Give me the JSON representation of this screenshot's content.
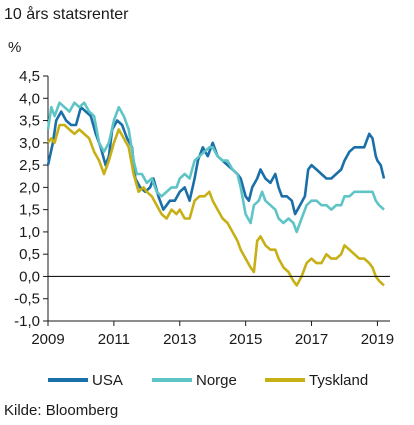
{
  "title": "10 års statsrenter",
  "source": "Kilde: Bloomberg",
  "chart_data": {
    "type": "line",
    "title": "10 års statsrenter",
    "ylabel": "%",
    "xlabel": "",
    "ylim": [
      -1.0,
      4.5
    ],
    "xlim": [
      2009.0,
      2019.2
    ],
    "yticks": [
      -1.0,
      -0.5,
      0.0,
      0.5,
      1.0,
      1.5,
      2.0,
      2.5,
      3.0,
      3.5,
      4.0,
      4.5
    ],
    "ytick_labels": [
      "-1,0",
      "-0,5",
      "0,0",
      "0,5",
      "1,0",
      "1,5",
      "2,0",
      "2,5",
      "3,0",
      "3,5",
      "4,0",
      "4,5"
    ],
    "xticks": [
      2009,
      2011,
      2013,
      2015,
      2017,
      2019
    ],
    "xtick_labels": [
      "2009",
      "2011",
      "2013",
      "2015",
      "2017",
      "2019"
    ],
    "zero_line": true,
    "grid": false,
    "legend_position": "bottom",
    "series": [
      {
        "name": "USA",
        "color": "#1a6fa8",
        "points": [
          [
            2009.0,
            2.5
          ],
          [
            2009.15,
            3.0
          ],
          [
            2009.25,
            3.5
          ],
          [
            2009.4,
            3.7
          ],
          [
            2009.55,
            3.5
          ],
          [
            2009.7,
            3.4
          ],
          [
            2009.85,
            3.4
          ],
          [
            2010.0,
            3.8
          ],
          [
            2010.15,
            3.7
          ],
          [
            2010.3,
            3.6
          ],
          [
            2010.45,
            3.2
          ],
          [
            2010.6,
            2.9
          ],
          [
            2010.75,
            2.5
          ],
          [
            2010.85,
            2.7
          ],
          [
            2010.95,
            3.3
          ],
          [
            2011.1,
            3.5
          ],
          [
            2011.25,
            3.4
          ],
          [
            2011.4,
            3.1
          ],
          [
            2011.55,
            2.9
          ],
          [
            2011.65,
            2.2
          ],
          [
            2011.8,
            2.0
          ],
          [
            2011.95,
            1.9
          ],
          [
            2012.1,
            2.0
          ],
          [
            2012.2,
            2.2
          ],
          [
            2012.35,
            1.8
          ],
          [
            2012.5,
            1.5
          ],
          [
            2012.6,
            1.6
          ],
          [
            2012.7,
            1.7
          ],
          [
            2012.85,
            1.7
          ],
          [
            2013.0,
            1.9
          ],
          [
            2013.15,
            2.0
          ],
          [
            2013.3,
            1.7
          ],
          [
            2013.45,
            2.2
          ],
          [
            2013.55,
            2.6
          ],
          [
            2013.7,
            2.9
          ],
          [
            2013.85,
            2.7
          ],
          [
            2014.0,
            3.0
          ],
          [
            2014.15,
            2.7
          ],
          [
            2014.3,
            2.6
          ],
          [
            2014.45,
            2.5
          ],
          [
            2014.6,
            2.4
          ],
          [
            2014.75,
            2.3
          ],
          [
            2014.85,
            2.2
          ],
          [
            2015.0,
            1.8
          ],
          [
            2015.1,
            1.7
          ],
          [
            2015.2,
            2.0
          ],
          [
            2015.35,
            2.2
          ],
          [
            2015.45,
            2.4
          ],
          [
            2015.6,
            2.2
          ],
          [
            2015.75,
            2.1
          ],
          [
            2015.9,
            2.3
          ],
          [
            2016.0,
            2.0
          ],
          [
            2016.1,
            1.8
          ],
          [
            2016.25,
            1.8
          ],
          [
            2016.4,
            1.7
          ],
          [
            2016.5,
            1.4
          ],
          [
            2016.65,
            1.6
          ],
          [
            2016.8,
            1.8
          ],
          [
            2016.9,
            2.4
          ],
          [
            2017.0,
            2.5
          ],
          [
            2017.15,
            2.4
          ],
          [
            2017.3,
            2.3
          ],
          [
            2017.45,
            2.2
          ],
          [
            2017.6,
            2.2
          ],
          [
            2017.75,
            2.3
          ],
          [
            2017.9,
            2.4
          ],
          [
            2018.0,
            2.6
          ],
          [
            2018.15,
            2.8
          ],
          [
            2018.3,
            2.9
          ],
          [
            2018.45,
            2.9
          ],
          [
            2018.6,
            2.9
          ],
          [
            2018.75,
            3.2
          ],
          [
            2018.85,
            3.1
          ],
          [
            2018.95,
            2.7
          ],
          [
            2019.0,
            2.6
          ],
          [
            2019.1,
            2.5
          ],
          [
            2019.2,
            2.2
          ]
        ]
      },
      {
        "name": "Norge",
        "color": "#5fc4c6",
        "points": [
          [
            2009.0,
            3.3
          ],
          [
            2009.1,
            3.8
          ],
          [
            2009.2,
            3.6
          ],
          [
            2009.35,
            3.9
          ],
          [
            2009.5,
            3.8
          ],
          [
            2009.65,
            3.7
          ],
          [
            2009.8,
            3.9
          ],
          [
            2009.95,
            3.8
          ],
          [
            2010.1,
            3.9
          ],
          [
            2010.25,
            3.7
          ],
          [
            2010.4,
            3.6
          ],
          [
            2010.55,
            3.0
          ],
          [
            2010.7,
            2.8
          ],
          [
            2010.85,
            3.0
          ],
          [
            2011.0,
            3.5
          ],
          [
            2011.15,
            3.8
          ],
          [
            2011.3,
            3.6
          ],
          [
            2011.45,
            3.3
          ],
          [
            2011.6,
            2.6
          ],
          [
            2011.7,
            2.3
          ],
          [
            2011.85,
            2.3
          ],
          [
            2012.0,
            2.1
          ],
          [
            2012.15,
            2.2
          ],
          [
            2012.3,
            1.9
          ],
          [
            2012.45,
            1.8
          ],
          [
            2012.6,
            1.9
          ],
          [
            2012.75,
            2.0
          ],
          [
            2012.9,
            2.0
          ],
          [
            2013.0,
            2.2
          ],
          [
            2013.15,
            2.3
          ],
          [
            2013.3,
            2.2
          ],
          [
            2013.45,
            2.6
          ],
          [
            2013.6,
            2.7
          ],
          [
            2013.75,
            2.8
          ],
          [
            2013.9,
            2.9
          ],
          [
            2014.0,
            2.9
          ],
          [
            2014.15,
            2.7
          ],
          [
            2014.3,
            2.6
          ],
          [
            2014.45,
            2.6
          ],
          [
            2014.6,
            2.4
          ],
          [
            2014.75,
            2.3
          ],
          [
            2014.85,
            2.0
          ],
          [
            2015.0,
            1.4
          ],
          [
            2015.15,
            1.2
          ],
          [
            2015.25,
            1.6
          ],
          [
            2015.4,
            1.7
          ],
          [
            2015.5,
            1.9
          ],
          [
            2015.6,
            1.7
          ],
          [
            2015.75,
            1.6
          ],
          [
            2015.9,
            1.5
          ],
          [
            2016.0,
            1.3
          ],
          [
            2016.15,
            1.2
          ],
          [
            2016.3,
            1.3
          ],
          [
            2016.45,
            1.2
          ],
          [
            2016.55,
            1.0
          ],
          [
            2016.7,
            1.3
          ],
          [
            2016.85,
            1.6
          ],
          [
            2017.0,
            1.7
          ],
          [
            2017.15,
            1.7
          ],
          [
            2017.3,
            1.6
          ],
          [
            2017.45,
            1.6
          ],
          [
            2017.6,
            1.5
          ],
          [
            2017.75,
            1.6
          ],
          [
            2017.9,
            1.6
          ],
          [
            2018.0,
            1.8
          ],
          [
            2018.15,
            1.8
          ],
          [
            2018.3,
            1.9
          ],
          [
            2018.45,
            1.9
          ],
          [
            2018.6,
            1.9
          ],
          [
            2018.75,
            1.9
          ],
          [
            2018.85,
            1.9
          ],
          [
            2018.95,
            1.7
          ],
          [
            2019.05,
            1.6
          ],
          [
            2019.2,
            1.5
          ]
        ]
      },
      {
        "name": "Tyskland",
        "color": "#c7b016",
        "points": [
          [
            2009.0,
            3.0
          ],
          [
            2009.1,
            3.1
          ],
          [
            2009.2,
            3.0
          ],
          [
            2009.35,
            3.4
          ],
          [
            2009.5,
            3.4
          ],
          [
            2009.65,
            3.3
          ],
          [
            2009.8,
            3.2
          ],
          [
            2009.95,
            3.3
          ],
          [
            2010.1,
            3.2
          ],
          [
            2010.25,
            3.1
          ],
          [
            2010.4,
            2.8
          ],
          [
            2010.55,
            2.6
          ],
          [
            2010.7,
            2.3
          ],
          [
            2010.85,
            2.6
          ],
          [
            2011.0,
            3.0
          ],
          [
            2011.15,
            3.3
          ],
          [
            2011.3,
            3.1
          ],
          [
            2011.45,
            2.9
          ],
          [
            2011.6,
            2.3
          ],
          [
            2011.75,
            1.9
          ],
          [
            2011.9,
            2.0
          ],
          [
            2012.0,
            1.9
          ],
          [
            2012.15,
            1.8
          ],
          [
            2012.3,
            1.6
          ],
          [
            2012.45,
            1.4
          ],
          [
            2012.6,
            1.3
          ],
          [
            2012.75,
            1.5
          ],
          [
            2012.9,
            1.4
          ],
          [
            2013.0,
            1.5
          ],
          [
            2013.15,
            1.3
          ],
          [
            2013.3,
            1.3
          ],
          [
            2013.45,
            1.7
          ],
          [
            2013.6,
            1.8
          ],
          [
            2013.75,
            1.8
          ],
          [
            2013.9,
            1.9
          ],
          [
            2014.0,
            1.7
          ],
          [
            2014.15,
            1.5
          ],
          [
            2014.3,
            1.3
          ],
          [
            2014.45,
            1.2
          ],
          [
            2014.6,
            1.0
          ],
          [
            2014.75,
            0.8
          ],
          [
            2014.85,
            0.6
          ],
          [
            2015.0,
            0.4
          ],
          [
            2015.15,
            0.2
          ],
          [
            2015.25,
            0.1
          ],
          [
            2015.35,
            0.8
          ],
          [
            2015.45,
            0.9
          ],
          [
            2015.6,
            0.7
          ],
          [
            2015.75,
            0.6
          ],
          [
            2015.9,
            0.6
          ],
          [
            2016.0,
            0.4
          ],
          [
            2016.15,
            0.2
          ],
          [
            2016.3,
            0.1
          ],
          [
            2016.45,
            -0.1
          ],
          [
            2016.55,
            -0.2
          ],
          [
            2016.7,
            0.0
          ],
          [
            2016.85,
            0.3
          ],
          [
            2017.0,
            0.4
          ],
          [
            2017.15,
            0.3
          ],
          [
            2017.3,
            0.3
          ],
          [
            2017.45,
            0.5
          ],
          [
            2017.6,
            0.4
          ],
          [
            2017.75,
            0.4
          ],
          [
            2017.9,
            0.5
          ],
          [
            2018.0,
            0.7
          ],
          [
            2018.15,
            0.6
          ],
          [
            2018.3,
            0.5
          ],
          [
            2018.45,
            0.4
          ],
          [
            2018.6,
            0.4
          ],
          [
            2018.75,
            0.3
          ],
          [
            2018.85,
            0.2
          ],
          [
            2018.95,
            0.0
          ],
          [
            2019.05,
            -0.1
          ],
          [
            2019.2,
            -0.2
          ]
        ]
      }
    ]
  }
}
